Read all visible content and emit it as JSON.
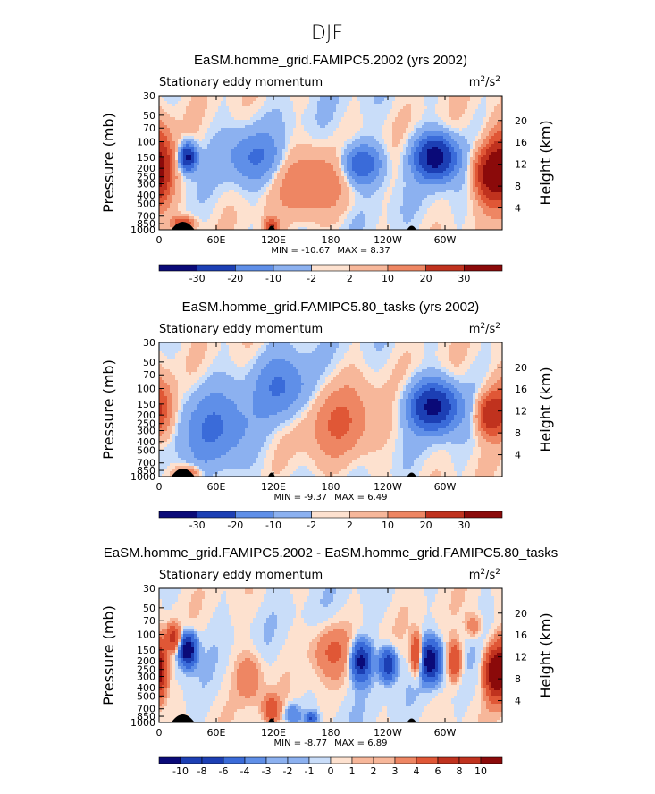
{
  "figure_title": "DJF",
  "colors": {
    "neg_scale": [
      "#0a0a78",
      "#1c3fb4",
      "#3a6bd9",
      "#5f8fe8",
      "#8cb1f0",
      "#c9ddf9"
    ],
    "pos_scale": [
      "#fde1cf",
      "#f7b79a",
      "#ee8663",
      "#e05736",
      "#c0321e",
      "#8b0a0a"
    ],
    "topography": "#000000"
  },
  "chart_data": [
    {
      "type": "heatmap",
      "id": "p1",
      "title": "EaSM.homme_grid.FAMIPC5.2002 (yrs 2002)",
      "left_label": "Stationary eddy momentum",
      "units_base": "m",
      "units_exp1": "2",
      "units_mid": "/s",
      "units_exp2": "2",
      "ylabel": "Pressure (mb)",
      "ylabel_right": "Height (km)",
      "x_ticks": [
        "0",
        "60E",
        "120E",
        "180",
        "120W",
        "60W"
      ],
      "y_ticks": [
        "30",
        "50",
        "70",
        "100",
        "150",
        "200",
        "250",
        "300",
        "400",
        "500",
        "700",
        "850",
        "1000"
      ],
      "y_right_ticks": [
        "20",
        "16",
        "12",
        "8",
        "4"
      ],
      "min_label": "MIN = ",
      "min_value": "-10.67",
      "max_label": "MAX = ",
      "max_value": "8.37",
      "colorbar_labels": [
        "-30",
        "-20",
        "-10",
        "-2",
        "2",
        "10",
        "20",
        "30"
      ],
      "features": [
        {
          "lon": 0,
          "p": 200,
          "value": 9,
          "wlon": 10,
          "wlogp": 0.28
        },
        {
          "lon": 30,
          "p": 150,
          "value": -9,
          "wlon": 6,
          "wlogp": 0.1
        },
        {
          "lon": 290,
          "p": 150,
          "value": -10,
          "wlon": 14,
          "wlogp": 0.16
        },
        {
          "lon": 212,
          "p": 180,
          "value": -5,
          "wlon": 14,
          "wlogp": 0.15
        },
        {
          "lon": 345,
          "p": 230,
          "value": 8,
          "wlon": 10,
          "wlogp": 0.2
        },
        {
          "lon": 100,
          "p": 150,
          "value": -3,
          "wlon": 20,
          "wlogp": 0.2
        },
        {
          "lon": 160,
          "p": 300,
          "value": 3,
          "wlon": 25,
          "wlogp": 0.25
        },
        {
          "lon": 25,
          "p": 850,
          "value": 5,
          "wlon": 8,
          "wlogp": 0.05
        },
        {
          "lon": 118,
          "p": 900,
          "value": 5,
          "wlon": 5,
          "wlogp": 0.06
        }
      ]
    },
    {
      "type": "heatmap",
      "id": "p2",
      "title": "EaSM.homme_grid.FAMIPC5.80_tasks (yrs 2002)",
      "left_label": "Stationary eddy momentum",
      "units_base": "m",
      "units_exp1": "2",
      "units_mid": "/s",
      "units_exp2": "2",
      "ylabel": "Pressure (mb)",
      "ylabel_right": "Height (km)",
      "x_ticks": [
        "0",
        "60E",
        "120E",
        "180",
        "120W",
        "60W"
      ],
      "y_ticks": [
        "30",
        "50",
        "70",
        "100",
        "150",
        "200",
        "250",
        "300",
        "400",
        "500",
        "700",
        "850",
        "1000"
      ],
      "y_right_ticks": [
        "20",
        "16",
        "12",
        "8",
        "4"
      ],
      "min_label": "MIN = ",
      "min_value": "-9.37",
      "max_label": "MAX = ",
      "max_value": "6.49",
      "colorbar_labels": [
        "-30",
        "-20",
        "-10",
        "-2",
        "2",
        "10",
        "20",
        "30"
      ],
      "features": [
        {
          "lon": 0,
          "p": 170,
          "value": 5,
          "wlon": 10,
          "wlogp": 0.22
        },
        {
          "lon": 288,
          "p": 160,
          "value": -9,
          "wlon": 16,
          "wlogp": 0.18
        },
        {
          "lon": 345,
          "p": 200,
          "value": 6,
          "wlon": 8,
          "wlogp": 0.15
        },
        {
          "lon": 60,
          "p": 300,
          "value": -3,
          "wlon": 25,
          "wlogp": 0.3
        },
        {
          "lon": 190,
          "p": 250,
          "value": 3,
          "wlon": 25,
          "wlogp": 0.3
        },
        {
          "lon": 130,
          "p": 100,
          "value": -3,
          "wlon": 20,
          "wlogp": 0.25
        },
        {
          "lon": 30,
          "p": 900,
          "value": 4,
          "wlon": 8,
          "wlogp": 0.05
        }
      ]
    },
    {
      "type": "heatmap",
      "id": "p3",
      "title": "EaSM.homme_grid.FAMIPC5.2002 - EaSM.homme_grid.FAMIPC5.80_tasks",
      "left_label": "Stationary eddy momentum",
      "units_base": "m",
      "units_exp1": "2",
      "units_mid": "/s",
      "units_exp2": "2",
      "ylabel": "Pressure (mb)",
      "ylabel_right": "Height (km)",
      "x_ticks": [
        "0",
        "60E",
        "120E",
        "180",
        "120W",
        "60W"
      ],
      "y_ticks": [
        "30",
        "50",
        "70",
        "100",
        "150",
        "200",
        "250",
        "300",
        "400",
        "500",
        "700",
        "850",
        "1000"
      ],
      "y_right_ticks": [
        "20",
        "16",
        "12",
        "8",
        "4"
      ],
      "min_label": "MIN = ",
      "min_value": "-8.77",
      "max_label": "MAX = ",
      "max_value": "6.89",
      "colorbar_labels": [
        "-10",
        "-8",
        "-6",
        "-4",
        "-3",
        "-2",
        "-1",
        "0",
        "1",
        "2",
        "3",
        "4",
        "6",
        "8",
        "10"
      ],
      "features": [
        {
          "lon": 0,
          "p": 250,
          "value": 7,
          "wlon": 6,
          "wlogp": 0.22
        },
        {
          "lon": 15,
          "p": 110,
          "value": 5,
          "wlon": 5,
          "wlogp": 0.1
        },
        {
          "lon": 30,
          "p": 150,
          "value": -9,
          "wlon": 6,
          "wlogp": 0.12
        },
        {
          "lon": 212,
          "p": 200,
          "value": -7,
          "wlon": 7,
          "wlogp": 0.15
        },
        {
          "lon": 240,
          "p": 220,
          "value": -6,
          "wlon": 6,
          "wlogp": 0.12
        },
        {
          "lon": 270,
          "p": 170,
          "value": 5,
          "wlon": 4,
          "wlogp": 0.15
        },
        {
          "lon": 285,
          "p": 200,
          "value": -8,
          "wlon": 7,
          "wlogp": 0.15
        },
        {
          "lon": 310,
          "p": 200,
          "value": 4,
          "wlon": 5,
          "wlogp": 0.15
        },
        {
          "lon": 350,
          "p": 270,
          "value": 7,
          "wlon": 6,
          "wlogp": 0.18
        },
        {
          "lon": 95,
          "p": 300,
          "value": 2,
          "wlon": 10,
          "wlogp": 0.2
        },
        {
          "lon": 118,
          "p": 700,
          "value": 3,
          "wlon": 6,
          "wlogp": 0.1
        },
        {
          "lon": 140,
          "p": 800,
          "value": -2,
          "wlon": 6,
          "wlogp": 0.08
        },
        {
          "lon": 160,
          "p": 900,
          "value": -4,
          "wlon": 4,
          "wlogp": 0.05
        },
        {
          "lon": 180,
          "p": 150,
          "value": 2,
          "wlon": 15,
          "wlogp": 0.2
        },
        {
          "lon": 330,
          "p": 80,
          "value": 2,
          "wlon": 6,
          "wlogp": 0.1
        }
      ]
    }
  ]
}
